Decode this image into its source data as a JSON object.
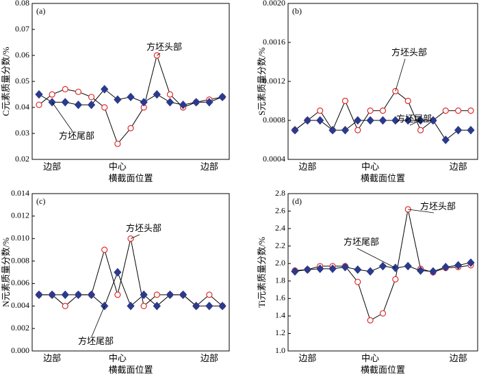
{
  "chart_data": [
    {
      "type": "line",
      "panel_label": "(a)",
      "ylabel": "C元素质量分数/%",
      "xlabel": "横截面位置",
      "categories": [
        null,
        "边部",
        null,
        null,
        null,
        null,
        "中心",
        null,
        null,
        null,
        null,
        null,
        null,
        "边部",
        null
      ],
      "ylim": [
        0.02,
        0.08
      ],
      "yticks": [
        0.02,
        0.03,
        0.04,
        0.05,
        0.06,
        0.07,
        0.08
      ],
      "series": [
        {
          "name": "方坯头部",
          "color": "#e02a2a",
          "values": [
            0.041,
            0.045,
            0.047,
            0.046,
            0.044,
            0.04,
            0.026,
            0.032,
            0.04,
            0.06,
            0.045,
            0.04,
            0.042,
            0.043,
            0.044
          ]
        },
        {
          "name": "方坯尾部",
          "color": "#2b3a8c",
          "values": [
            0.045,
            0.042,
            0.042,
            0.041,
            0.041,
            0.047,
            0.043,
            0.044,
            0.042,
            0.045,
            0.042,
            0.041,
            0.042,
            0.042,
            0.044
          ]
        }
      ]
    },
    {
      "type": "line",
      "panel_label": "(b)",
      "ylabel": "S元素质量分数/%",
      "xlabel": "横截面位置",
      "categories": [
        null,
        "边部",
        null,
        null,
        null,
        null,
        "中心",
        null,
        null,
        null,
        null,
        null,
        null,
        "边部",
        null
      ],
      "ylim": [
        0.0004,
        0.002
      ],
      "yticks": [
        0.0004,
        0.0008,
        0.0012,
        0.0016,
        {
          "value": 0.002,
          "label": "0.0020"
        }
      ],
      "series": [
        {
          "name": "方坯头部",
          "color": "#e02a2a",
          "values": [
            0.0007,
            0.0008,
            0.0009,
            0.0007,
            0.001,
            0.0007,
            0.0009,
            0.0009,
            0.0011,
            0.001,
            0.0007,
            0.0008,
            0.0009,
            0.0009,
            0.0009
          ]
        },
        {
          "name": "方坯尾部",
          "color": "#2b3a8c",
          "values": [
            0.0007,
            0.0008,
            0.0008,
            0.0007,
            0.0007,
            0.0008,
            0.0008,
            0.0008,
            0.0008,
            0.0008,
            0.0008,
            0.0008,
            0.0006,
            0.0007,
            0.0007
          ]
        }
      ]
    },
    {
      "type": "line",
      "panel_label": "(c)",
      "ylabel": "N元素质量分数/%",
      "xlabel": "横截面位置",
      "categories": [
        null,
        "边部",
        null,
        null,
        null,
        null,
        "中心",
        null,
        null,
        null,
        null,
        null,
        null,
        "边部",
        null
      ],
      "ylim": [
        0,
        0.014
      ],
      "yticks": [
        {
          "value": 0,
          "label": "0.000"
        },
        0.002,
        0.004,
        0.006,
        0.008,
        {
          "value": 0.01,
          "label": "0.010"
        },
        0.012,
        0.014
      ],
      "series": [
        {
          "name": "方坯头部",
          "color": "#e02a2a",
          "values": [
            0.005,
            0.005,
            0.004,
            0.005,
            0.005,
            0.009,
            0.005,
            0.01,
            0.004,
            0.005,
            0.005,
            0.005,
            0.004,
            0.005,
            0.004
          ]
        },
        {
          "name": "方坯尾部",
          "color": "#2b3a8c",
          "values": [
            0.005,
            0.005,
            0.005,
            0.005,
            0.005,
            0.004,
            0.007,
            0.004,
            0.005,
            0.004,
            0.005,
            0.005,
            0.004,
            0.004,
            0.004
          ]
        }
      ]
    },
    {
      "type": "line",
      "panel_label": "(d)",
      "ylabel": "Ti元素质量分数/%",
      "xlabel": "横截面位置",
      "categories": [
        null,
        "边部",
        null,
        null,
        null,
        null,
        "中心",
        null,
        null,
        null,
        null,
        null,
        null,
        "边部",
        null
      ],
      "ylim": [
        1.0,
        2.8
      ],
      "yticks": [
        {
          "value": 1.0,
          "label": "1.0"
        },
        1.2,
        1.4,
        1.6,
        1.8,
        {
          "value": 2.0,
          "label": "2.0"
        },
        2.2,
        2.4,
        2.6,
        2.8
      ],
      "series": [
        {
          "name": "方坯头部",
          "color": "#e02a2a",
          "values": [
            1.92,
            1.93,
            1.97,
            1.97,
            1.97,
            1.79,
            1.35,
            1.43,
            1.82,
            2.62,
            1.94,
            1.9,
            1.95,
            1.96,
            1.98
          ]
        },
        {
          "name": "方坯尾部",
          "color": "#2b3a8c",
          "values": [
            1.91,
            1.93,
            1.94,
            1.94,
            1.96,
            1.93,
            1.91,
            1.97,
            1.95,
            1.97,
            1.92,
            1.91,
            1.96,
            1.98,
            2.01
          ]
        }
      ]
    }
  ]
}
